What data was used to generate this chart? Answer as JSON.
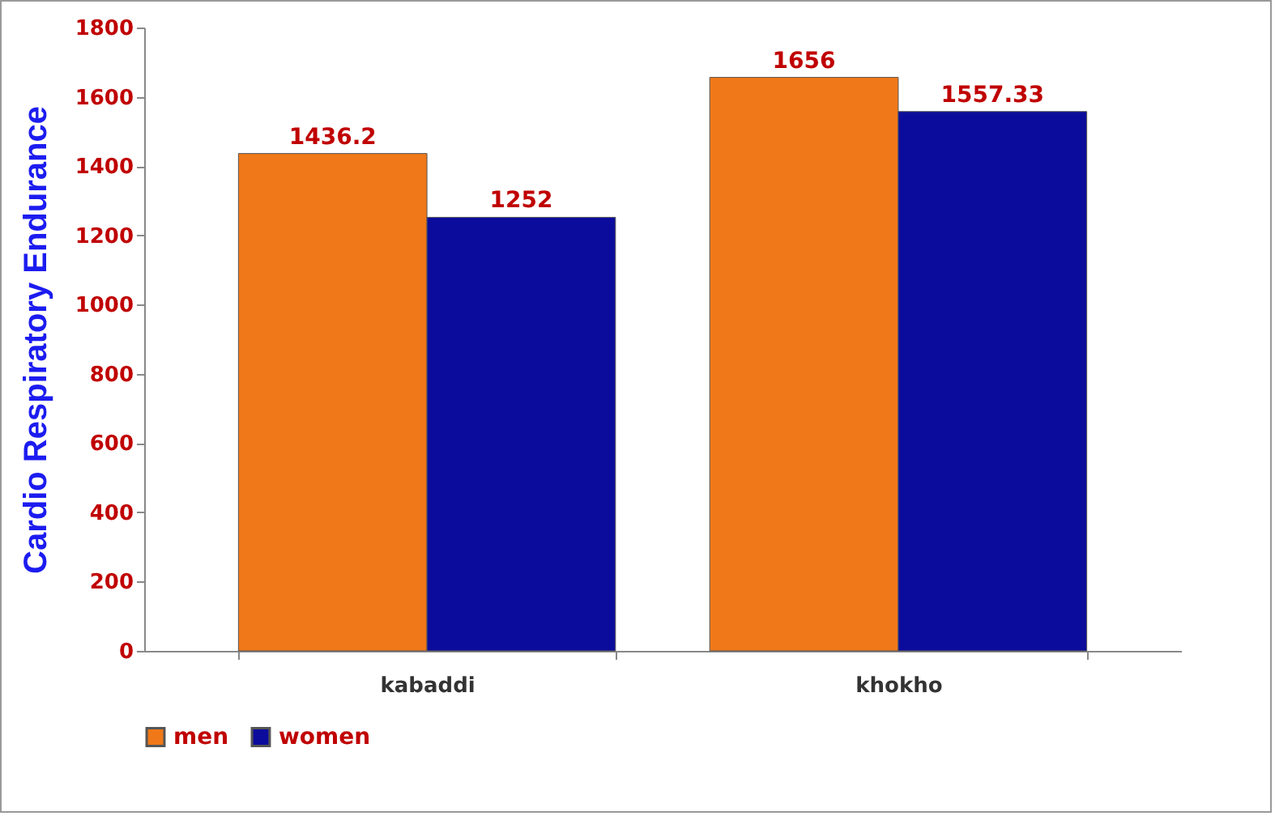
{
  "chart_data": {
    "type": "bar",
    "ylabel": "Cardio Respiratory Endurance",
    "categories": [
      "kabaddi",
      "khokho"
    ],
    "series": [
      {
        "name": "men",
        "color": "#f07818",
        "values": [
          1436.2,
          1656
        ]
      },
      {
        "name": "women",
        "color": "#0c0c9c",
        "values": [
          1252,
          1557.33
        ]
      }
    ],
    "ylim": [
      0,
      1800
    ],
    "yticks": [
      0,
      200,
      400,
      600,
      800,
      1000,
      1200,
      1400,
      1600,
      1800
    ],
    "data_labels": true,
    "legend": "bottom",
    "grid": false
  }
}
